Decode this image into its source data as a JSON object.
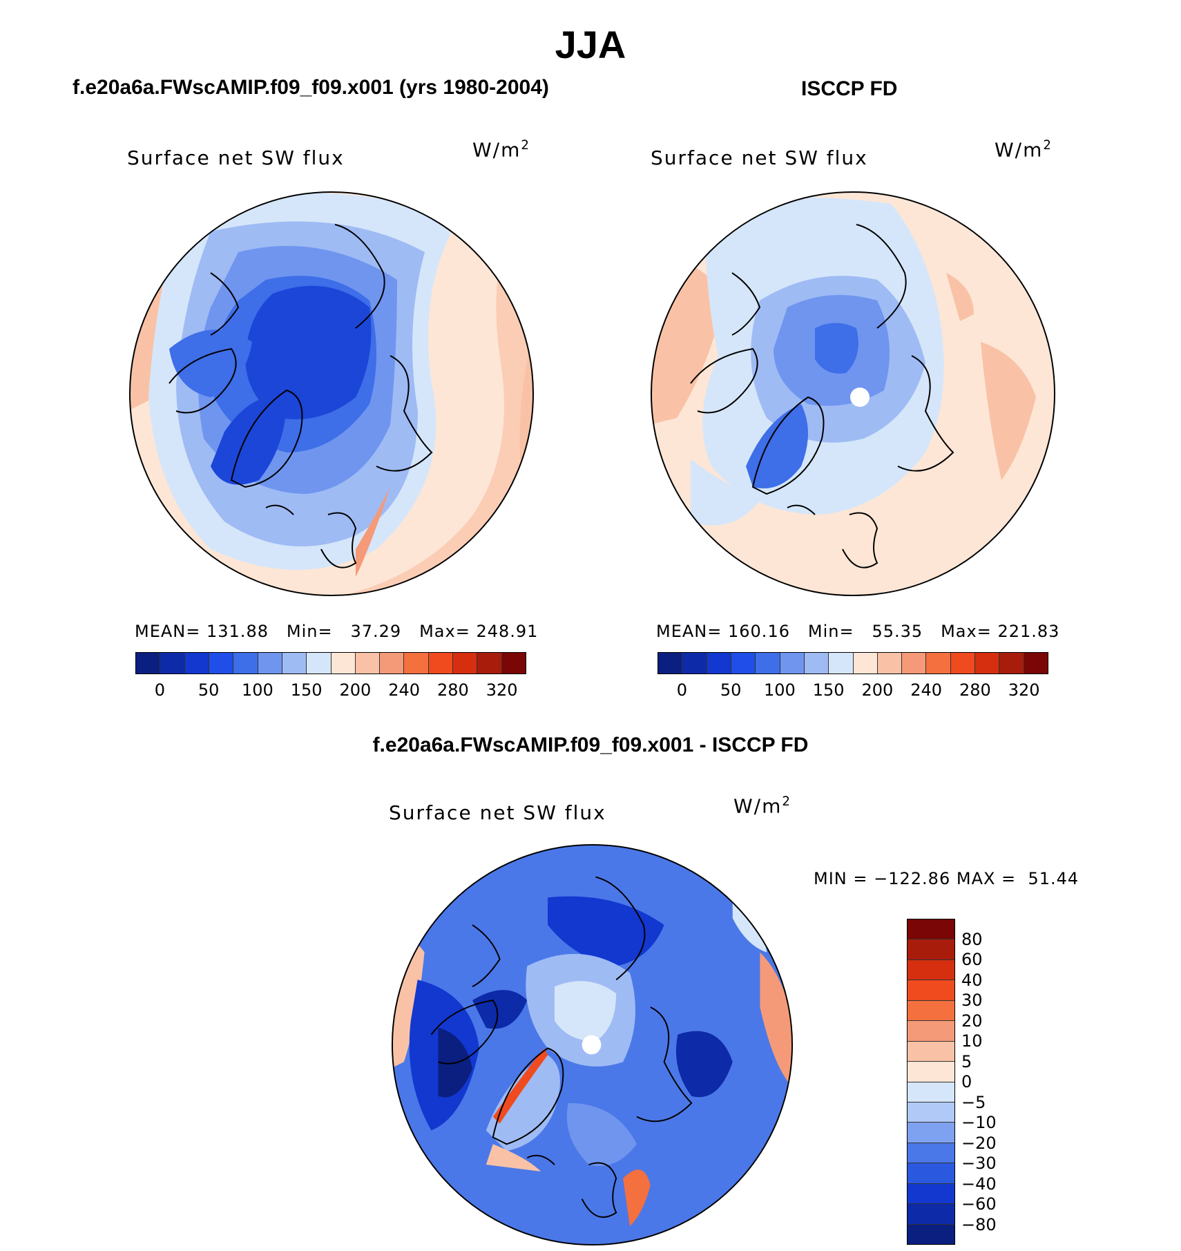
{
  "title": "JJA",
  "panels": {
    "model": {
      "case_title": "f.e20a6a.FWscAMIP.f09_f09.x001 (yrs 1980-2004)",
      "variable": "Surface net SW flux",
      "units_base": "W/m",
      "units_exp": "2",
      "mean_label": "MEAN=",
      "mean": "131.88",
      "min_label": "Min=",
      "min": "37.29",
      "max_label": "Max=",
      "max": "248.91"
    },
    "obs": {
      "case_title": "ISCCP FD",
      "variable": "Surface net SW flux",
      "units_base": "W/m",
      "units_exp": "2",
      "mean_label": "MEAN=",
      "mean": "160.16",
      "min_label": "Min=",
      "min": "55.35",
      "max_label": "Max=",
      "max": "221.83"
    },
    "diff": {
      "case_title": "f.e20a6a.FWscAMIP.f09_f09.x001 - ISCCP FD",
      "variable": "Surface net SW flux",
      "units_base": "W/m",
      "units_exp": "2",
      "min_label": "MIN =",
      "min": "−122.86",
      "max_label": "MAX =",
      "max": "51.44"
    }
  },
  "colorbar_top": {
    "colors": [
      "#0b1f80",
      "#0d2aa8",
      "#1238d0",
      "#1f4fe8",
      "#3e6ee8",
      "#6f95ef",
      "#9fbbf4",
      "#d5e6fa",
      "#fde6d6",
      "#f9c2a6",
      "#f59a78",
      "#f4703e",
      "#f04a1f",
      "#d62f10",
      "#a81c0c",
      "#7a0605"
    ],
    "ticks": [
      "0",
      "50",
      "100",
      "150",
      "200",
      "240",
      "280",
      "320"
    ]
  },
  "colorbar_diff": {
    "colors": [
      "#7a0605",
      "#a81c0c",
      "#d62f10",
      "#f04a1f",
      "#f4703e",
      "#f59a78",
      "#f9c2a6",
      "#fde6d6",
      "#d5e6fa",
      "#b0c9f6",
      "#7fa2f0",
      "#4b78e8",
      "#2a59e0",
      "#1238d0",
      "#0d2aa8",
      "#0b1f80"
    ],
    "ticks": [
      "80",
      "60",
      "40",
      "30",
      "20",
      "10",
      "5",
      "0",
      "−5",
      "−10",
      "−20",
      "−30",
      "−40",
      "−60",
      "−80"
    ]
  },
  "map_colors": {
    "deep": "#0d2aa8",
    "dark": "#1c46d8",
    "mid": "#3e6ee8",
    "light": "#6f95ef",
    "pale": "#9fbbf4",
    "paler": "#d5e6fa",
    "peach": "#fde6d6",
    "salmon": "#f9c2a6",
    "orange": "#f59a78",
    "red": "#f04a1f"
  }
}
